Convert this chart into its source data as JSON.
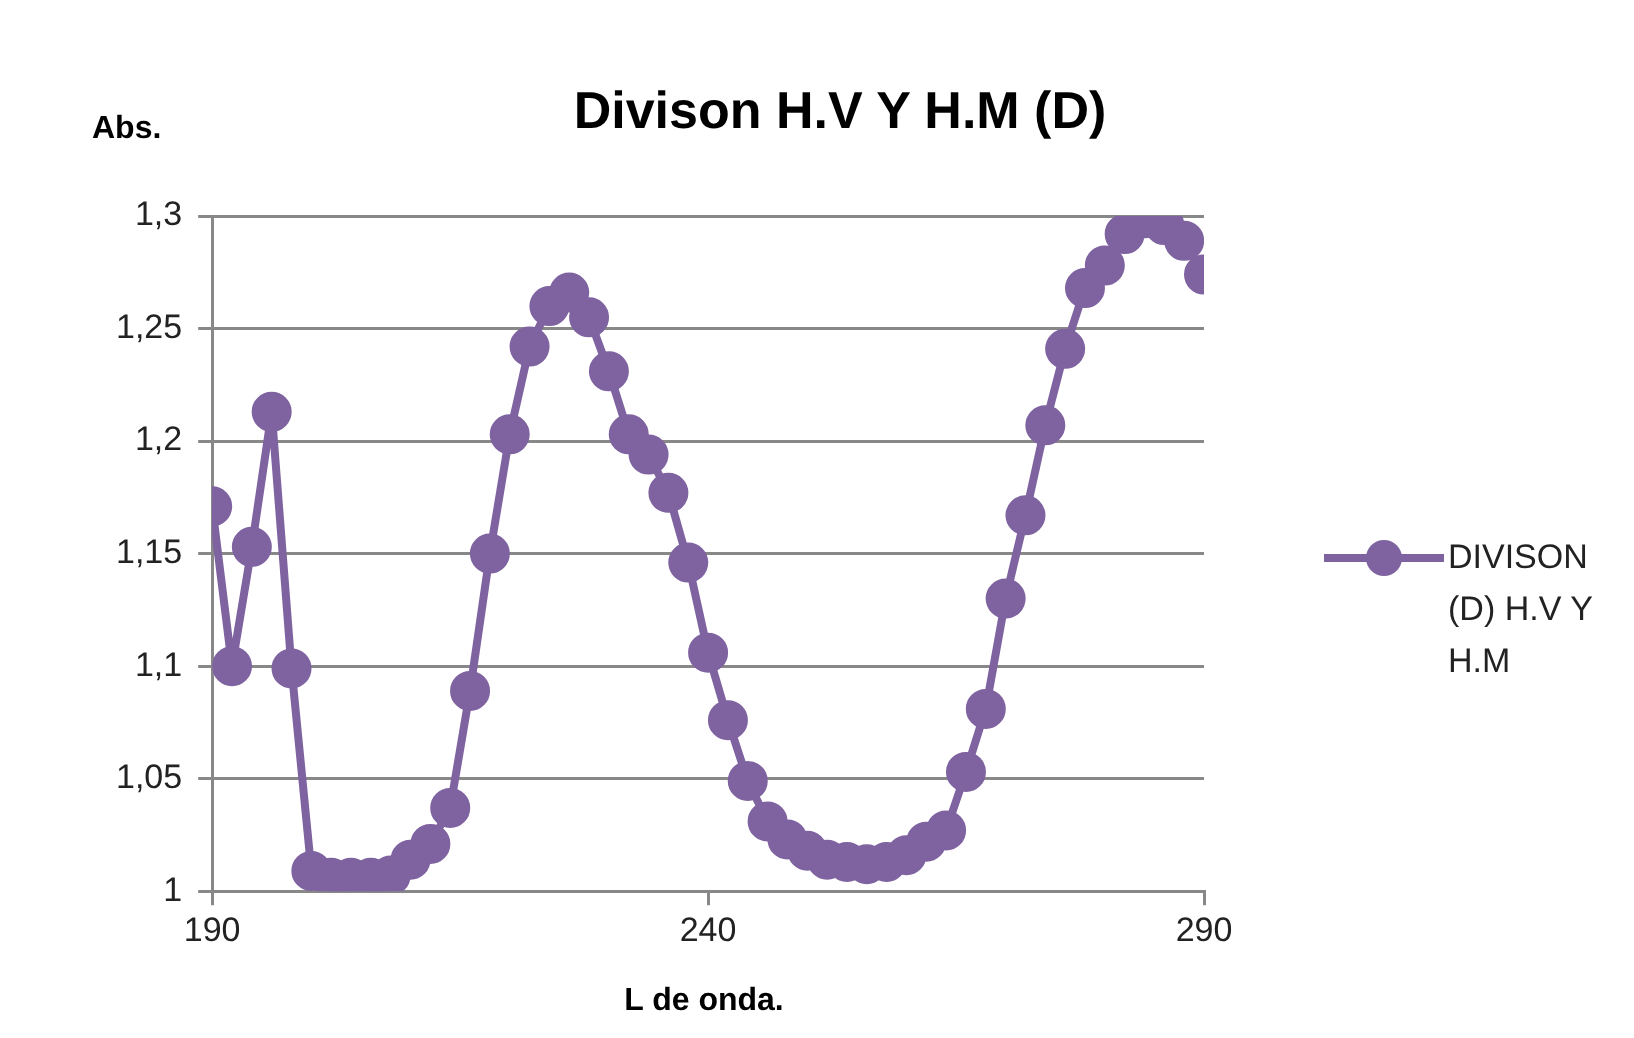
{
  "chart_data": {
    "type": "line",
    "title": "Divison  H.V  Y H.M (D)",
    "xlabel": "L de onda.",
    "ylabel": "Abs.",
    "x": [
      190,
      192,
      194,
      196,
      198,
      200,
      202,
      204,
      206,
      208,
      210,
      212,
      214,
      216,
      218,
      220,
      222,
      224,
      226,
      228,
      230,
      232,
      234,
      236,
      238,
      240,
      242,
      244,
      246,
      248,
      250,
      252,
      254,
      256,
      258,
      260,
      262,
      264,
      266,
      268,
      270,
      272,
      274,
      276,
      278,
      280,
      282,
      284,
      286,
      288,
      290
    ],
    "series": [
      {
        "name": "DIVISON (D)  H.V Y H.M",
        "color": "#7f63a1",
        "values": [
          1.171,
          1.1,
          1.153,
          1.213,
          1.099,
          1.009,
          1.006,
          1.006,
          1.006,
          1.007,
          1.014,
          1.021,
          1.037,
          1.089,
          1.15,
          1.203,
          1.242,
          1.26,
          1.266,
          1.255,
          1.231,
          1.203,
          1.194,
          1.177,
          1.146,
          1.106,
          1.076,
          1.049,
          1.031,
          1.023,
          1.018,
          1.014,
          1.013,
          1.012,
          1.013,
          1.016,
          1.022,
          1.027,
          1.053,
          1.081,
          1.13,
          1.167,
          1.207,
          1.241,
          1.268,
          1.278,
          1.292,
          1.299,
          1.296,
          1.289,
          1.274
        ]
      }
    ],
    "xlim": [
      190,
      290
    ],
    "xticks": [
      190,
      240,
      290
    ],
    "ylim": [
      1,
      1.3
    ],
    "yticks": [
      1,
      {
        "value": 1.05,
        "label": "1,05"
      },
      {
        "value": 1.1,
        "label": "1,1"
      },
      {
        "value": 1.15,
        "label": "1,15"
      },
      {
        "value": 1.2,
        "label": "1,2"
      },
      {
        "value": 1.25,
        "label": "1,25"
      },
      {
        "value": 1.3,
        "label": "1,3"
      }
    ],
    "grid": "y",
    "legend": "right",
    "marker": "circle",
    "line_style": "solid"
  }
}
